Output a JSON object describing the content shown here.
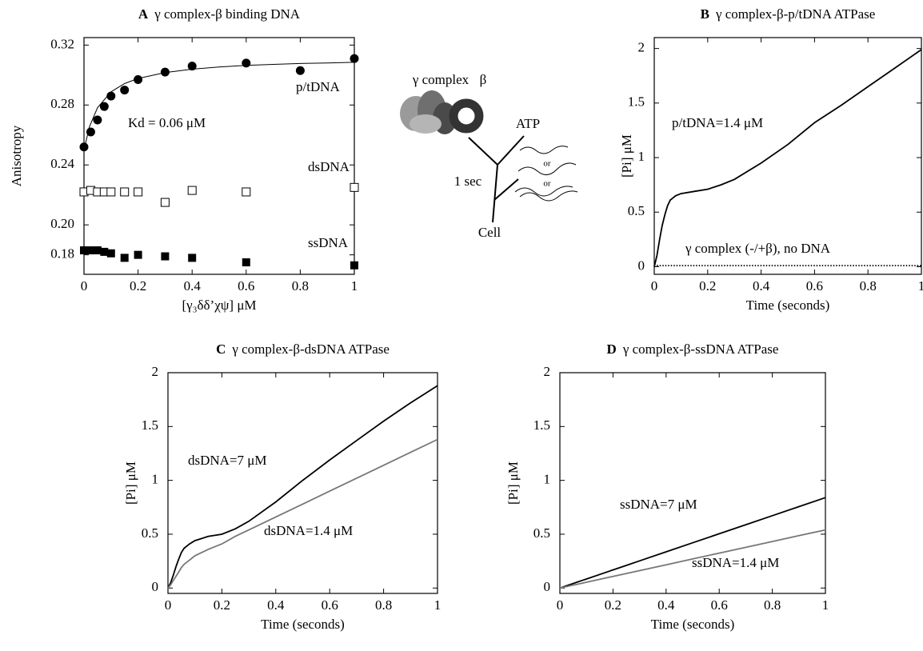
{
  "chart_data": [
    {
      "type": "scatter",
      "panel": "A",
      "title": "γ complex-β binding DNA",
      "xlabel": "[γ₃δδ’χψ] μM",
      "ylabel": "Anisotropy",
      "xlim": [
        0,
        1
      ],
      "ylim": [
        0.167,
        0.325
      ],
      "xticks": [
        0,
        0.2,
        0.4,
        0.6,
        0.8,
        1
      ],
      "yticks": [
        0.18,
        {
          "value": 0.2,
          "label": "0.20"
        },
        0.24,
        0.28,
        0.32
      ],
      "series": [
        {
          "name": "p/tDNA",
          "marker": "circle",
          "color": "#000000",
          "x": [
            0,
            0.025,
            0.05,
            0.075,
            0.1,
            0.15,
            0.2,
            0.3,
            0.4,
            0.6,
            0.8,
            1
          ],
          "values": [
            0.252,
            0.262,
            0.27,
            0.279,
            0.286,
            0.29,
            0.297,
            0.302,
            0.306,
            0.308,
            0.303,
            0.311
          ]
        },
        {
          "name": "dsDNA",
          "marker": "open-square",
          "color": "#000000",
          "x": [
            0,
            0.025,
            0.05,
            0.075,
            0.1,
            0.15,
            0.2,
            0.3,
            0.4,
            0.6,
            1
          ],
          "values": [
            0.222,
            0.223,
            0.222,
            0.222,
            0.222,
            0.222,
            0.222,
            0.215,
            0.223,
            0.222,
            0.225
          ]
        },
        {
          "name": "ssDNA",
          "marker": "square",
          "color": "#000000",
          "x": [
            0,
            0.025,
            0.05,
            0.075,
            0.1,
            0.15,
            0.2,
            0.3,
            0.4,
            0.6,
            1
          ],
          "values": [
            0.183,
            0.183,
            0.183,
            0.182,
            0.181,
            0.178,
            0.18,
            0.179,
            0.178,
            0.175,
            0.173
          ]
        }
      ],
      "fit": {
        "color": "#000000",
        "x": [
          0,
          0.02,
          0.05,
          0.1,
          0.15,
          0.2,
          0.3,
          0.4,
          0.5,
          0.6,
          0.7,
          0.8,
          0.9,
          1
        ],
        "values": [
          0.25,
          0.2655,
          0.2782,
          0.2888,
          0.2943,
          0.2977,
          0.3017,
          0.3039,
          0.3054,
          0.3064,
          0.3071,
          0.3077,
          0.3081,
          0.3085
        ]
      },
      "annotations": [
        "Kd = 0.06 μM"
      ]
    },
    {
      "type": "line",
      "panel": "B",
      "title": "γ complex-β-p/tDNA ATPase",
      "xlabel": "Time (seconds)",
      "ylabel": "[Pi] μM",
      "xlim": [
        0,
        1
      ],
      "ylim": [
        -0.07,
        2.1
      ],
      "xticks": [
        0,
        0.2,
        0.4,
        0.6,
        0.8,
        1
      ],
      "yticks": [
        0,
        0.5,
        1,
        1.5,
        2
      ],
      "x": [
        0,
        0.01,
        0.02,
        0.03,
        0.04,
        0.05,
        0.06,
        0.08,
        0.1,
        0.15,
        0.2,
        0.25,
        0.3,
        0.4,
        0.5,
        0.6,
        0.7,
        0.8,
        0.9,
        1
      ],
      "series": [
        {
          "name": "p/tDNA=1.4 μM",
          "color": "#000000",
          "style": "solid",
          "values": [
            0,
            0.1,
            0.25,
            0.38,
            0.48,
            0.56,
            0.61,
            0.65,
            0.67,
            0.69,
            0.71,
            0.75,
            0.8,
            0.95,
            1.12,
            1.32,
            1.48,
            1.65,
            1.82,
            1.99
          ]
        },
        {
          "name": "γ complex (-/+β), no DNA",
          "color": "#000000",
          "style": "dotted",
          "values": [
            0,
            0.01,
            0.01,
            0.01,
            0.01,
            0.01,
            0.01,
            0.01,
            0.01,
            0.01,
            0.01,
            0.01,
            0.01,
            0.01,
            0.01,
            0.01,
            0.01,
            0.01,
            0.01,
            0.01
          ]
        }
      ]
    },
    {
      "type": "line",
      "panel": "C",
      "title": "γ complex-β-dsDNA ATPase",
      "xlabel": "Time (seconds)",
      "ylabel": "[Pi] μM",
      "xlim": [
        0,
        1
      ],
      "ylim": [
        -0.05,
        2.0
      ],
      "xticks": [
        0,
        0.2,
        0.4,
        0.6,
        0.8,
        1
      ],
      "yticks": [
        0,
        0.5,
        1,
        1.5,
        2
      ],
      "x": [
        0,
        0.01,
        0.02,
        0.03,
        0.04,
        0.05,
        0.06,
        0.08,
        0.1,
        0.15,
        0.2,
        0.25,
        0.3,
        0.4,
        0.5,
        0.6,
        0.7,
        0.8,
        0.9,
        1
      ],
      "series": [
        {
          "name": "dsDNA=7 μM",
          "color": "#000000",
          "style": "solid",
          "values": [
            0,
            0.05,
            0.12,
            0.2,
            0.27,
            0.33,
            0.37,
            0.41,
            0.44,
            0.48,
            0.5,
            0.55,
            0.62,
            0.8,
            1.0,
            1.19,
            1.37,
            1.55,
            1.72,
            1.88
          ]
        },
        {
          "name": "dsDNA=1.4 μM",
          "color": "#777777",
          "style": "solid",
          "values": [
            0,
            0.03,
            0.07,
            0.11,
            0.15,
            0.19,
            0.22,
            0.26,
            0.3,
            0.36,
            0.41,
            0.48,
            0.54,
            0.66,
            0.78,
            0.9,
            1.02,
            1.14,
            1.26,
            1.38
          ]
        }
      ]
    },
    {
      "type": "line",
      "panel": "D",
      "title": "γ complex-β-ssDNA ATPase",
      "xlabel": "Time (seconds)",
      "ylabel": "[Pi] μM",
      "xlim": [
        0,
        1
      ],
      "ylim": [
        -0.05,
        2.0
      ],
      "xticks": [
        0,
        0.2,
        0.4,
        0.6,
        0.8,
        1
      ],
      "yticks": [
        0,
        0.5,
        1,
        1.5,
        2
      ],
      "x": [
        0,
        0.01,
        0.02,
        0.03,
        0.04,
        0.05,
        0.06,
        0.08,
        0.1,
        0.15,
        0.2,
        0.25,
        0.3,
        0.4,
        0.5,
        0.6,
        0.7,
        0.8,
        0.9,
        1
      ],
      "series": [
        {
          "name": "ssDNA=7 μM",
          "color": "#000000",
          "style": "solid",
          "values": [
            0,
            0.008,
            0.017,
            0.025,
            0.034,
            0.042,
            0.05,
            0.067,
            0.084,
            0.126,
            0.168,
            0.21,
            0.252,
            0.336,
            0.42,
            0.504,
            0.588,
            0.672,
            0.756,
            0.84
          ]
        },
        {
          "name": "ssDNA=1.4 μM",
          "color": "#777777",
          "style": "solid",
          "values": [
            0,
            0.005,
            0.011,
            0.016,
            0.022,
            0.027,
            0.032,
            0.043,
            0.054,
            0.081,
            0.108,
            0.135,
            0.162,
            0.216,
            0.27,
            0.324,
            0.378,
            0.432,
            0.486,
            0.54
          ]
        }
      ]
    }
  ],
  "diagram": {
    "labels": [
      "γ complex",
      "β",
      "ATP",
      "1 sec",
      "or",
      "or",
      "Cell"
    ]
  }
}
